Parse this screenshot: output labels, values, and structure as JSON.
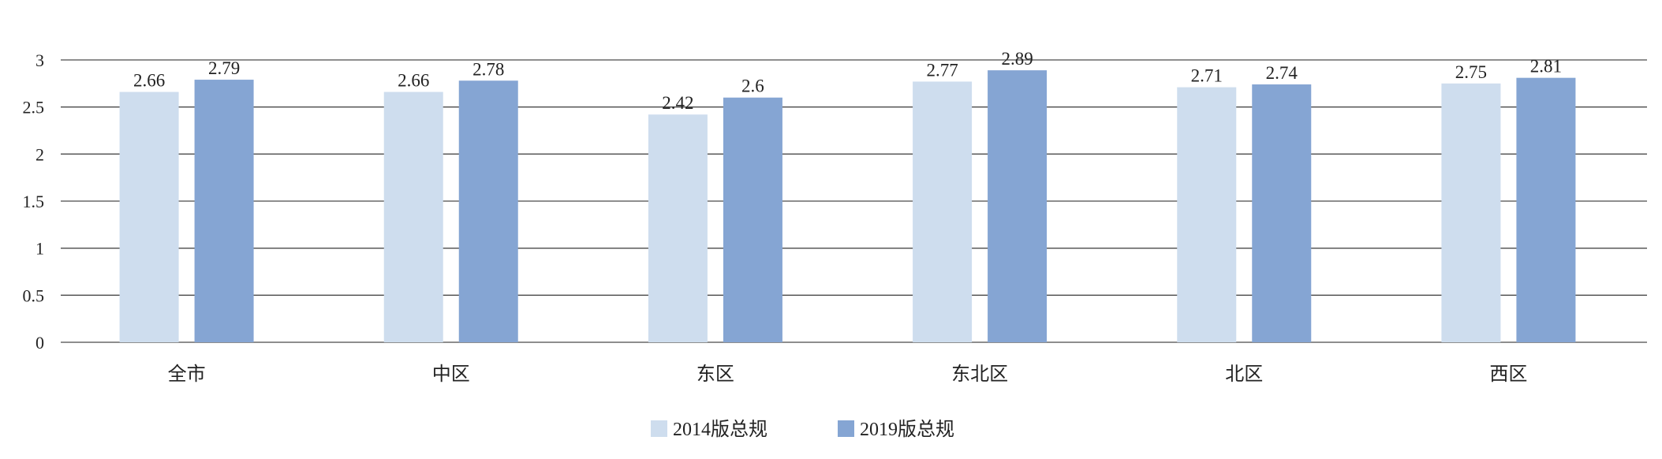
{
  "chart_data": {
    "type": "bar",
    "categories": [
      "全市",
      "中区",
      "东区",
      "东北区",
      "北区",
      "西区"
    ],
    "series": [
      {
        "name": "2014版总规",
        "color": "#ceddee",
        "values": [
          2.66,
          2.66,
          2.42,
          2.77,
          2.71,
          2.75
        ]
      },
      {
        "name": "2019版总规",
        "color": "#85a5d3",
        "values": [
          2.79,
          2.78,
          2.6,
          2.89,
          2.74,
          2.81
        ]
      }
    ],
    "yticks": [
      "0",
      "0.5",
      "1",
      "1.5",
      "2",
      "2.5",
      "3"
    ],
    "ylim": [
      0,
      3
    ],
    "grid": true,
    "legend": "bottom-center",
    "data_labels": true
  }
}
